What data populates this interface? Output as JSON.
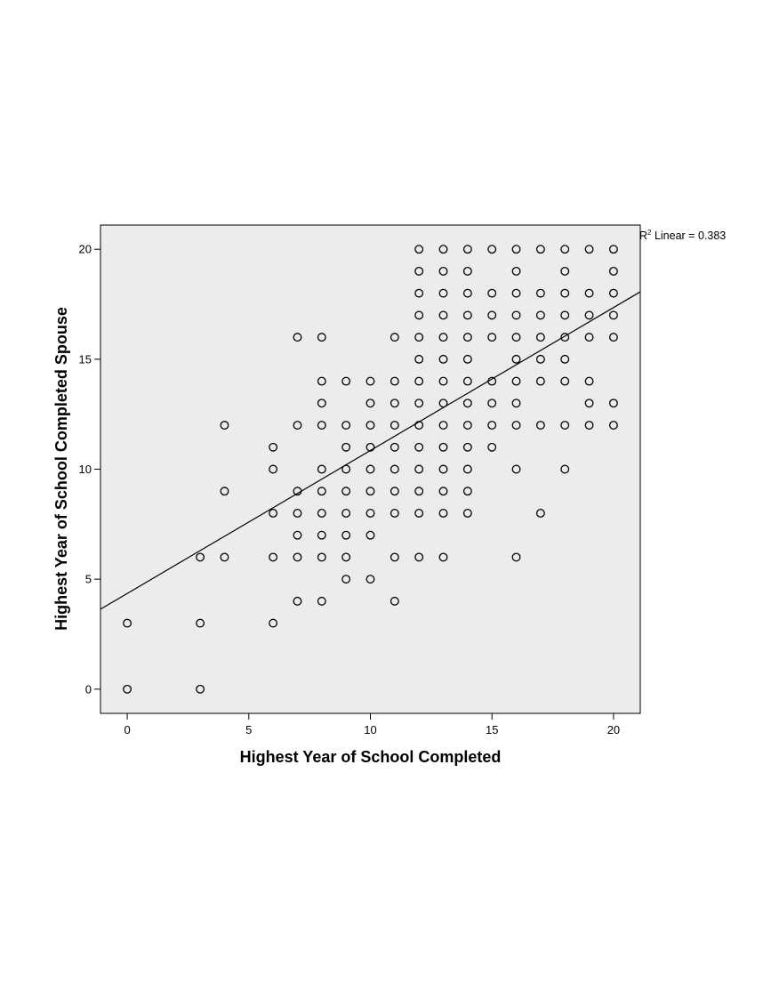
{
  "chart_data": {
    "type": "scatter",
    "title": "",
    "xlabel": "Highest Year of School Completed",
    "ylabel": "Highest Year of School Completed Spouse",
    "xlim": [
      -1.1,
      21.1
    ],
    "ylim": [
      -1.1,
      21.1
    ],
    "xticks": [
      0,
      5,
      10,
      15,
      20
    ],
    "yticks": [
      0,
      5,
      10,
      15,
      20
    ],
    "grid": false,
    "plot_background": "#ececec",
    "marker_color": "#000000",
    "fit_line": {
      "intercept": 4.35,
      "slope": 0.65,
      "label": "R² Linear = 0.383",
      "label_main": "R",
      "label_sup": "2",
      "label_rest": " Linear = 0.383"
    },
    "points": [
      [
        0,
        0
      ],
      [
        0,
        3
      ],
      [
        3,
        0
      ],
      [
        3,
        3
      ],
      [
        3,
        6
      ],
      [
        4,
        6
      ],
      [
        4,
        9
      ],
      [
        4,
        12
      ],
      [
        6,
        3
      ],
      [
        6,
        6
      ],
      [
        6,
        8
      ],
      [
        6,
        10
      ],
      [
        6,
        11
      ],
      [
        7,
        4
      ],
      [
        7,
        6
      ],
      [
        7,
        7
      ],
      [
        7,
        8
      ],
      [
        7,
        9
      ],
      [
        7,
        12
      ],
      [
        7,
        16
      ],
      [
        8,
        4
      ],
      [
        8,
        6
      ],
      [
        8,
        7
      ],
      [
        8,
        8
      ],
      [
        8,
        9
      ],
      [
        8,
        10
      ],
      [
        8,
        12
      ],
      [
        8,
        13
      ],
      [
        8,
        14
      ],
      [
        8,
        16
      ],
      [
        9,
        5
      ],
      [
        9,
        6
      ],
      [
        9,
        7
      ],
      [
        9,
        8
      ],
      [
        9,
        9
      ],
      [
        9,
        10
      ],
      [
        9,
        11
      ],
      [
        9,
        12
      ],
      [
        9,
        14
      ],
      [
        10,
        5
      ],
      [
        10,
        7
      ],
      [
        10,
        8
      ],
      [
        10,
        9
      ],
      [
        10,
        10
      ],
      [
        10,
        11
      ],
      [
        10,
        12
      ],
      [
        10,
        13
      ],
      [
        10,
        14
      ],
      [
        11,
        4
      ],
      [
        11,
        6
      ],
      [
        11,
        8
      ],
      [
        11,
        9
      ],
      [
        11,
        10
      ],
      [
        11,
        11
      ],
      [
        11,
        12
      ],
      [
        11,
        13
      ],
      [
        11,
        14
      ],
      [
        11,
        16
      ],
      [
        12,
        6
      ],
      [
        12,
        8
      ],
      [
        12,
        9
      ],
      [
        12,
        10
      ],
      [
        12,
        11
      ],
      [
        12,
        12
      ],
      [
        12,
        13
      ],
      [
        12,
        14
      ],
      [
        12,
        15
      ],
      [
        12,
        16
      ],
      [
        12,
        17
      ],
      [
        12,
        18
      ],
      [
        12,
        19
      ],
      [
        12,
        20
      ],
      [
        13,
        6
      ],
      [
        13,
        8
      ],
      [
        13,
        9
      ],
      [
        13,
        10
      ],
      [
        13,
        11
      ],
      [
        13,
        12
      ],
      [
        13,
        13
      ],
      [
        13,
        14
      ],
      [
        13,
        15
      ],
      [
        13,
        16
      ],
      [
        13,
        17
      ],
      [
        13,
        18
      ],
      [
        13,
        19
      ],
      [
        13,
        20
      ],
      [
        14,
        8
      ],
      [
        14,
        9
      ],
      [
        14,
        10
      ],
      [
        14,
        11
      ],
      [
        14,
        12
      ],
      [
        14,
        13
      ],
      [
        14,
        14
      ],
      [
        14,
        15
      ],
      [
        14,
        16
      ],
      [
        14,
        17
      ],
      [
        14,
        18
      ],
      [
        14,
        19
      ],
      [
        14,
        20
      ],
      [
        15,
        11
      ],
      [
        15,
        12
      ],
      [
        15,
        13
      ],
      [
        15,
        14
      ],
      [
        15,
        16
      ],
      [
        15,
        17
      ],
      [
        15,
        18
      ],
      [
        15,
        20
      ],
      [
        16,
        6
      ],
      [
        16,
        10
      ],
      [
        16,
        12
      ],
      [
        16,
        13
      ],
      [
        16,
        14
      ],
      [
        16,
        15
      ],
      [
        16,
        16
      ],
      [
        16,
        17
      ],
      [
        16,
        18
      ],
      [
        16,
        19
      ],
      [
        16,
        20
      ],
      [
        17,
        8
      ],
      [
        17,
        12
      ],
      [
        17,
        14
      ],
      [
        17,
        15
      ],
      [
        17,
        16
      ],
      [
        17,
        17
      ],
      [
        17,
        18
      ],
      [
        17,
        20
      ],
      [
        18,
        10
      ],
      [
        18,
        12
      ],
      [
        18,
        14
      ],
      [
        18,
        15
      ],
      [
        18,
        16
      ],
      [
        18,
        17
      ],
      [
        18,
        18
      ],
      [
        18,
        19
      ],
      [
        18,
        20
      ],
      [
        19,
        12
      ],
      [
        19,
        13
      ],
      [
        19,
        14
      ],
      [
        19,
        16
      ],
      [
        19,
        17
      ],
      [
        19,
        18
      ],
      [
        19,
        20
      ],
      [
        20,
        12
      ],
      [
        20,
        13
      ],
      [
        20,
        16
      ],
      [
        20,
        17
      ],
      [
        20,
        18
      ],
      [
        20,
        19
      ],
      [
        20,
        20
      ]
    ]
  }
}
